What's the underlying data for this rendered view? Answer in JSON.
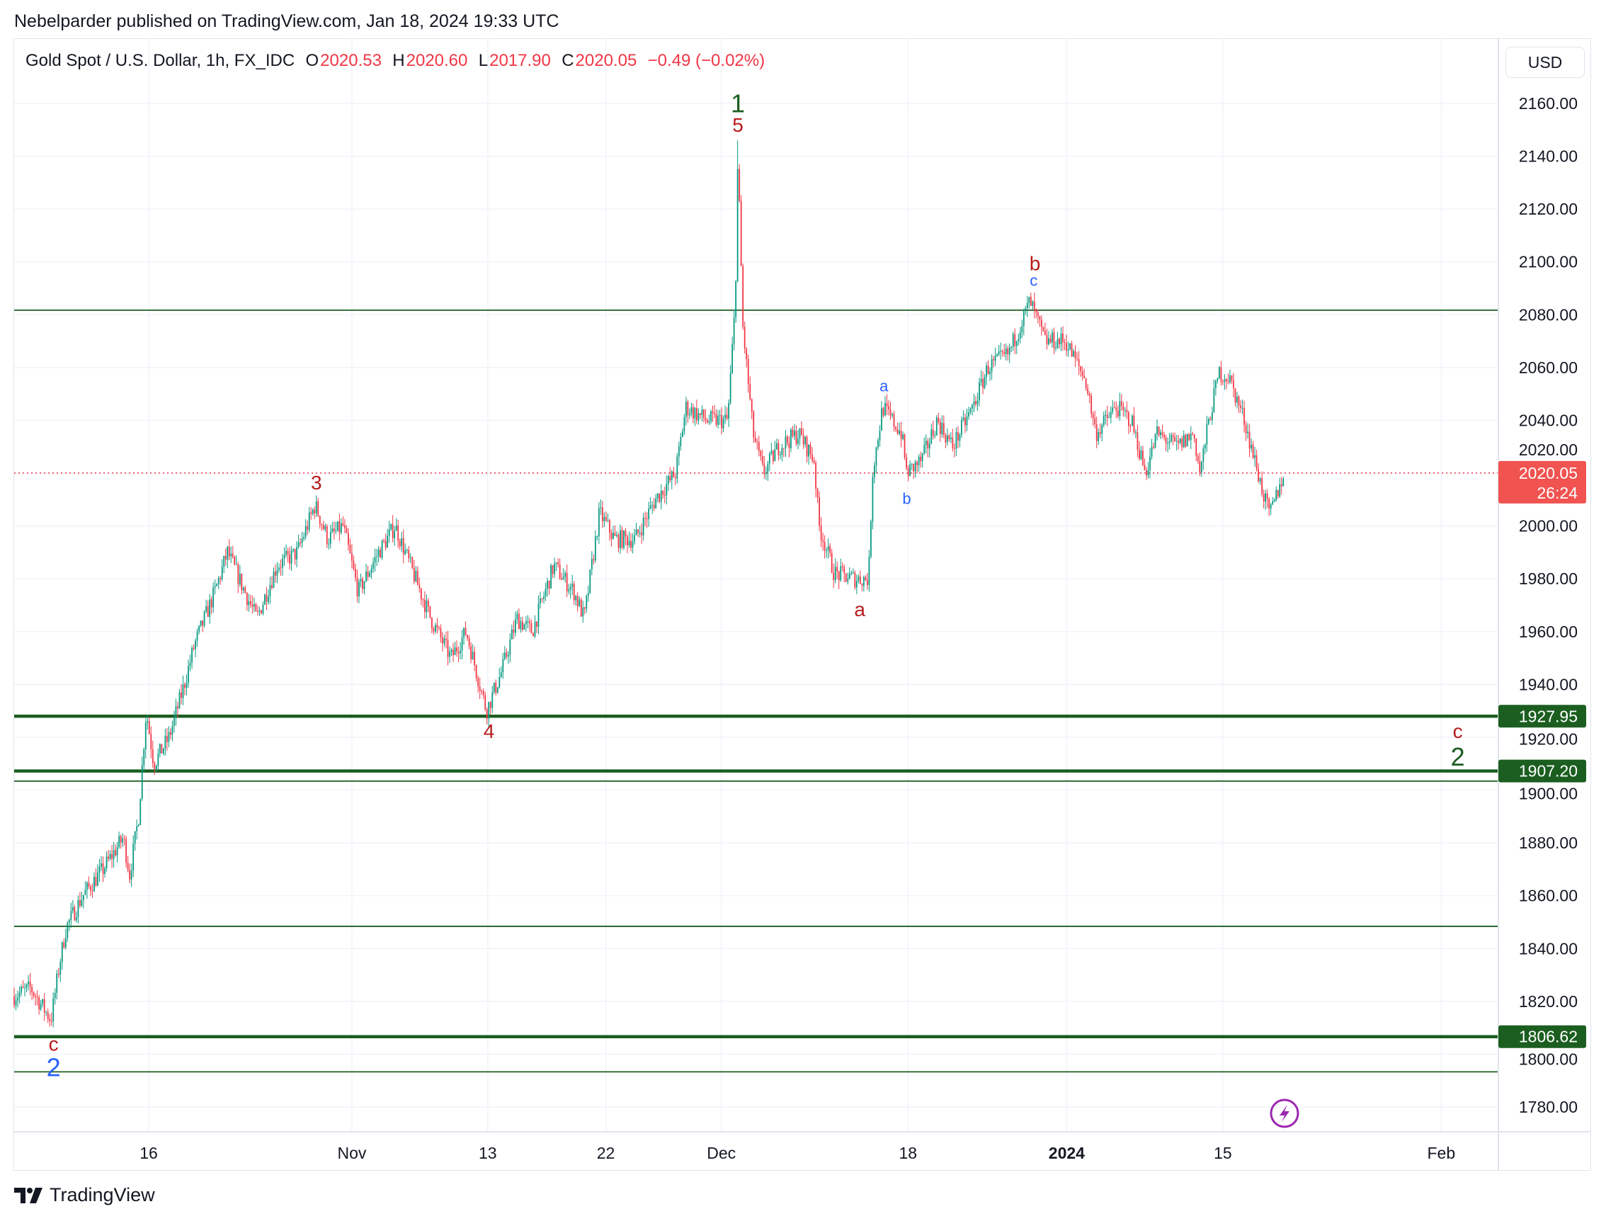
{
  "publisher_line": "Nebelparder published on TradingView.com, Jan 18, 2024 19:33 UTC",
  "legend": {
    "symbol": "Gold Spot / U.S. Dollar, 1h, FX_IDC",
    "o_label": "O",
    "o_value": "2020.53",
    "h_label": "H",
    "h_value": "2020.60",
    "l_label": "L",
    "l_value": "2017.90",
    "c_label": "C",
    "c_value": "2020.05",
    "change": "−0.49 (−0.02%)"
  },
  "currency_button": "USD",
  "footer_logo": "TradingView",
  "colors": {
    "up": "#089981",
    "down": "#f23645",
    "level": "#1b5e20",
    "last": "#f23645",
    "wave_red": "#b71c1c",
    "wave_blue": "#2962ff",
    "wave_green": "#1b5e20",
    "alert": "#9c27b0"
  },
  "chart_data": {
    "type": "candlestick",
    "title": "Gold Spot / U.S. Dollar, 1h, FX_IDC",
    "x_unit": "trading-days offset from Oct 16, 2023 (approx.)",
    "xlim": [
      -10.6,
      106.3
    ],
    "ylim": [
      1765,
      2180
    ],
    "grid": true,
    "y_ticks": [
      "2160.00",
      "2140.00",
      "2120.00",
      "2100.00",
      "2080.00",
      "2060.00",
      "2040.00",
      "2020.00",
      "2000.00",
      "1980.00",
      "1960.00",
      "1940.00",
      "1920.00",
      "1900.00",
      "1880.00",
      "1860.00",
      "1840.00",
      "1820.00",
      "1800.00",
      "1780.00"
    ],
    "x_ticks": [
      {
        "label": "16",
        "x": 0
      },
      {
        "label": "Nov",
        "x": 16
      },
      {
        "label": "13",
        "x": 26.7
      },
      {
        "label": "22",
        "x": 36
      },
      {
        "label": "Dec",
        "x": 45.1
      },
      {
        "label": "18",
        "x": 59.8
      },
      {
        "label": "2024",
        "x": 72.3,
        "bold": true
      },
      {
        "label": "15",
        "x": 84.6
      },
      {
        "label": "Feb",
        "x": 101.8
      }
    ],
    "price_path": [
      [
        -10.6,
        1822
      ],
      [
        -9.3,
        1825
      ],
      [
        -7.7,
        1813
      ],
      [
        -7.0,
        1835
      ],
      [
        -6.5,
        1848
      ],
      [
        -5.2,
        1860
      ],
      [
        -3.6,
        1870
      ],
      [
        -2.0,
        1882
      ],
      [
        -1.5,
        1868
      ],
      [
        -0.8,
        1890
      ],
      [
        -0.2,
        1930
      ],
      [
        0.4,
        1910
      ],
      [
        1.6,
        1920
      ],
      [
        2.8,
        1940
      ],
      [
        3.6,
        1955
      ],
      [
        5.2,
        1975
      ],
      [
        6.2,
        1990
      ],
      [
        7.3,
        1978
      ],
      [
        8.5,
        1965
      ],
      [
        10.1,
        1985
      ],
      [
        11.7,
        1990
      ],
      [
        13.1,
        2008
      ],
      [
        14.1,
        1995
      ],
      [
        15.3,
        2000
      ],
      [
        16.5,
        1975
      ],
      [
        18.1,
        1990
      ],
      [
        19.4,
        2000
      ],
      [
        20.6,
        1985
      ],
      [
        22.2,
        1965
      ],
      [
        23.8,
        1950
      ],
      [
        25.0,
        1960
      ],
      [
        26.6,
        1930
      ],
      [
        27.8,
        1945
      ],
      [
        29.0,
        1965
      ],
      [
        30.2,
        1960
      ],
      [
        31.9,
        1985
      ],
      [
        33.5,
        1975
      ],
      [
        34.3,
        1965
      ],
      [
        35.5,
        2005
      ],
      [
        36.7,
        1995
      ],
      [
        38.3,
        1995
      ],
      [
        39.9,
        2010
      ],
      [
        41.5,
        2020
      ],
      [
        42.3,
        2045
      ],
      [
        44.0,
        2040
      ],
      [
        45.6,
        2040
      ],
      [
        46.2,
        2085
      ],
      [
        46.4,
        2140
      ],
      [
        46.8,
        2075
      ],
      [
        47.6,
        2035
      ],
      [
        48.4,
        2020
      ],
      [
        49.6,
        2030
      ],
      [
        51.2,
        2035
      ],
      [
        52.4,
        2025
      ],
      [
        52.8,
        2000
      ],
      [
        54.0,
        1982
      ],
      [
        55.6,
        1980
      ],
      [
        56.7,
        1980
      ],
      [
        57.0,
        2020
      ],
      [
        57.8,
        2045
      ],
      [
        59.3,
        2035
      ],
      [
        59.7,
        2020
      ],
      [
        60.9,
        2025
      ],
      [
        62.1,
        2040
      ],
      [
        63.3,
        2030
      ],
      [
        64.9,
        2045
      ],
      [
        66.1,
        2060
      ],
      [
        67.7,
        2065
      ],
      [
        69.4,
        2085
      ],
      [
        70.6,
        2070
      ],
      [
        72.2,
        2070
      ],
      [
        73.8,
        2055
      ],
      [
        74.6,
        2035
      ],
      [
        76.2,
        2045
      ],
      [
        77.4,
        2040
      ],
      [
        78.5,
        2020
      ],
      [
        79.4,
        2035
      ],
      [
        81.0,
        2030
      ],
      [
        82.3,
        2035
      ],
      [
        82.8,
        2020
      ],
      [
        83.5,
        2040
      ],
      [
        84.3,
        2058
      ],
      [
        85.1,
        2056
      ],
      [
        86.3,
        2040
      ],
      [
        87.1,
        2025
      ],
      [
        87.9,
        2010
      ],
      [
        88.3,
        2004
      ],
      [
        89.4,
        2020.05
      ]
    ],
    "horizontal_levels": [
      {
        "price": 2081.7,
        "style": "thin"
      },
      {
        "price": 1927.95,
        "style": "thick",
        "label": "1927.95"
      },
      {
        "price": 1907.2,
        "style": "thick",
        "label": "1907.20"
      },
      {
        "price": 1903.4,
        "style": "thin"
      },
      {
        "price": 1848.4,
        "style": "thin"
      },
      {
        "price": 1806.62,
        "style": "thick",
        "label": "1806.62"
      },
      {
        "price": 1793.3,
        "style": "thin"
      }
    ],
    "last_price": {
      "value": "2020.05",
      "countdown": "26:24",
      "price": 2020.05
    },
    "wave_labels": [
      {
        "text": "1",
        "x": 46.4,
        "price": 2160,
        "color": "green",
        "big": true
      },
      {
        "text": "5",
        "x": 46.4,
        "price": 2152,
        "color": "red"
      },
      {
        "text": "3",
        "x": 13.2,
        "price": 2016.5,
        "color": "red"
      },
      {
        "text": "4",
        "x": 26.8,
        "price": 1922.4,
        "color": "red"
      },
      {
        "text": "c",
        "x": -7.5,
        "price": 1804,
        "color": "red"
      },
      {
        "text": "2",
        "x": -7.5,
        "price": 1795,
        "color": "blue",
        "big": true
      },
      {
        "text": "a",
        "x": 56.0,
        "price": 1968.5,
        "color": "red"
      },
      {
        "text": "a",
        "x": 57.9,
        "price": 2053,
        "color": "blue",
        "small": true
      },
      {
        "text": "b",
        "x": 59.7,
        "price": 2010.4,
        "color": "blue",
        "small": true
      },
      {
        "text": "b",
        "x": 69.8,
        "price": 2099.5,
        "color": "red"
      },
      {
        "text": "c",
        "x": 69.7,
        "price": 2093.3,
        "color": "blue",
        "small": true
      },
      {
        "text": "c",
        "x": 103.1,
        "price": 1922.4,
        "color": "red"
      },
      {
        "text": "2",
        "x": 103.1,
        "price": 1912.7,
        "color": "green",
        "big": true
      }
    ]
  }
}
